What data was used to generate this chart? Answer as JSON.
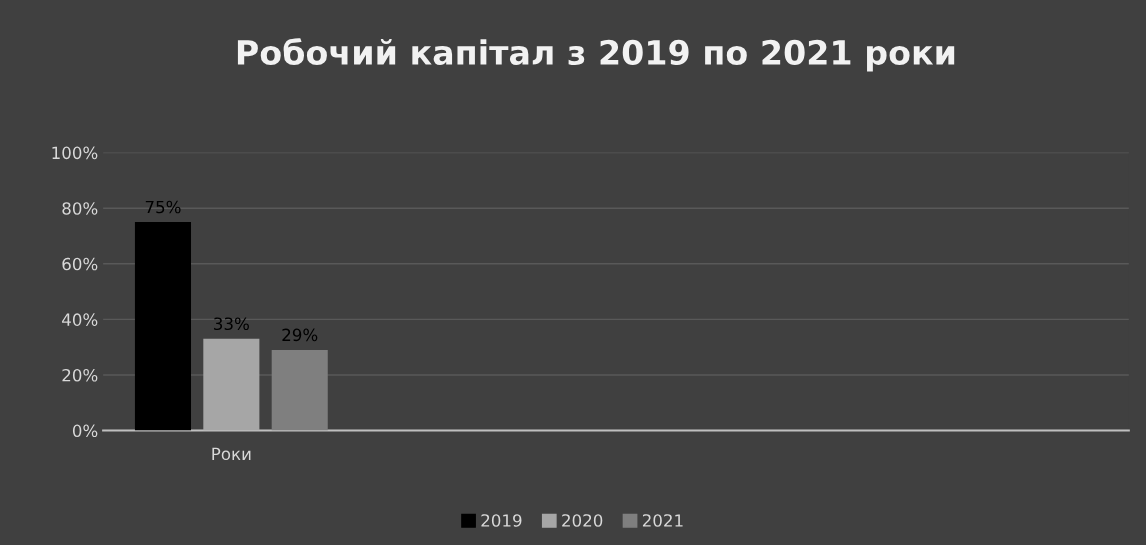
{
  "chart_data": {
    "type": "bar",
    "title": "Робочий капітал з 2019 по 2021 роки",
    "categories": [
      "Роки",
      null,
      null,
      null
    ],
    "series": [
      {
        "name": "2019",
        "color": "#000000",
        "values": [
          75,
          null,
          null,
          null
        ],
        "value_labels": [
          "75%",
          null,
          null,
          null
        ]
      },
      {
        "name": "2020",
        "color": "#a6a6a6",
        "values": [
          33,
          null,
          null,
          null
        ],
        "value_labels": [
          "33%",
          null,
          null,
          null
        ]
      },
      {
        "name": "2021",
        "color": "#7f7f7f",
        "values": [
          29,
          null,
          null,
          null
        ],
        "value_labels": [
          "29%",
          null,
          null,
          null
        ]
      }
    ],
    "ylim": [
      0,
      100
    ],
    "yticks": [
      {
        "value": 0,
        "label": "0%"
      },
      {
        "value": 20,
        "label": "20%"
      },
      {
        "value": 40,
        "label": "40%"
      },
      {
        "value": 60,
        "label": "60%"
      },
      {
        "value": 80,
        "label": "80%"
      },
      {
        "value": 100,
        "label": "100%"
      }
    ],
    "grid": "y",
    "legend": "bottom"
  }
}
